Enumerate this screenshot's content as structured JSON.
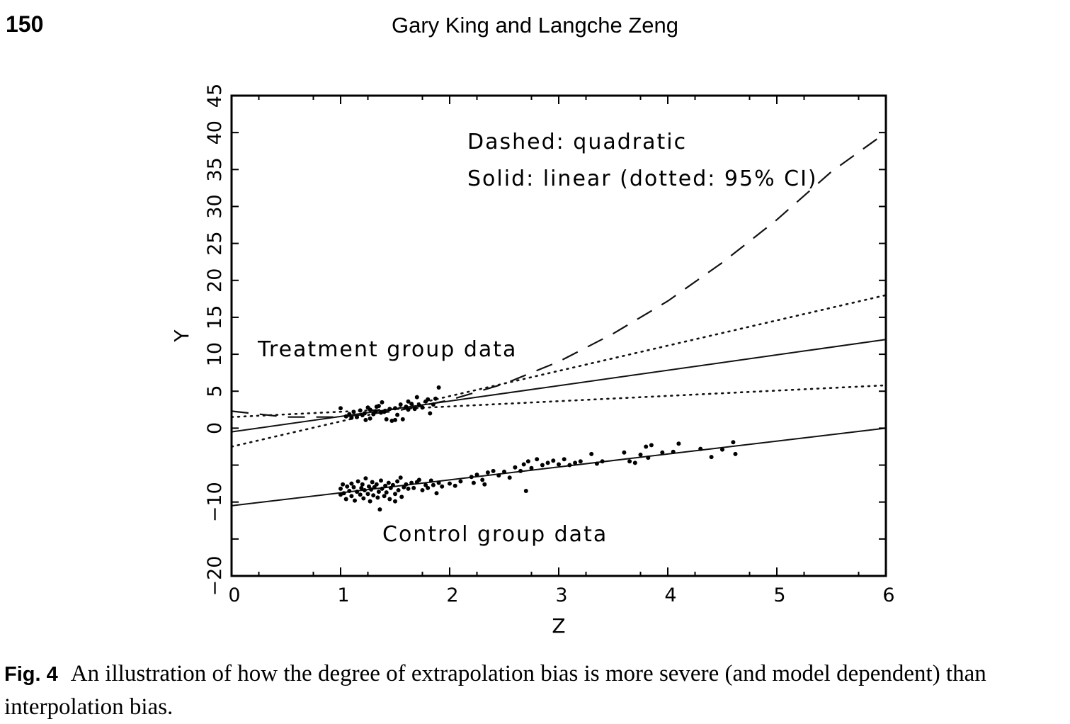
{
  "header": {
    "page_number": "150",
    "authors": "Gary King and Langche Zeng"
  },
  "caption": {
    "label": "Fig. 4",
    "text": "An illustration of how the degree of extrapolation bias is more severe (and model dependent) than interpolation bias."
  },
  "chart_data": {
    "type": "scatter",
    "xlabel": "Z",
    "ylabel": "Y",
    "xlim": [
      0,
      6
    ],
    "ylim": [
      -20,
      45
    ],
    "xticks": [
      "0",
      "1",
      "2",
      "3",
      "4",
      "5",
      "6"
    ],
    "yticks": [
      "−20",
      "−10",
      "0",
      "5",
      "10",
      "15",
      "20",
      "25",
      "30",
      "35",
      "40",
      "45"
    ],
    "grid": false,
    "annotations": {
      "legend_line1": "Dashed: quadratic",
      "legend_line2": "Solid: linear (dotted: 95% CI)",
      "treatment_label": "Treatment group data",
      "control_label": "Control group data"
    },
    "lines": [
      {
        "style": "solid",
        "x": [
          0,
          6
        ],
        "y": [
          -0.5,
          12
        ]
      },
      {
        "style": "dotted",
        "x": [
          0,
          6
        ],
        "y": [
          -2.5,
          18
        ]
      },
      {
        "style": "dotted",
        "x": [
          0,
          6
        ],
        "y": [
          1.5,
          5.8
        ]
      },
      {
        "style": "dashed",
        "x": [
          0,
          0.5,
          1,
          1.5,
          2,
          2.5,
          3,
          3.5,
          4,
          4.5,
          5,
          5.5,
          6
        ],
        "y": [
          2.3,
          1.5,
          1.5,
          2.3,
          3.8,
          6.0,
          9.0,
          12.8,
          17.2,
          22.4,
          28.2,
          34.7,
          40
        ]
      },
      {
        "style": "solid",
        "x": [
          0,
          6
        ],
        "y": [
          -10.5,
          0
        ]
      }
    ],
    "series": [
      {
        "group": "treatment",
        "points": [
          [
            1.0,
            2.7
          ],
          [
            1.05,
            1.6
          ],
          [
            1.08,
            1.9
          ],
          [
            1.12,
            2.2
          ],
          [
            1.15,
            1.5
          ],
          [
            1.18,
            2.4
          ],
          [
            1.2,
            1.8
          ],
          [
            1.22,
            2.0
          ],
          [
            1.25,
            2.8
          ],
          [
            1.27,
            2.5
          ],
          [
            1.3,
            1.9
          ],
          [
            1.32,
            2.3
          ],
          [
            1.35,
            3.0
          ],
          [
            1.37,
            2.1
          ],
          [
            1.38,
            3.5
          ],
          [
            1.4,
            2.2
          ],
          [
            1.42,
            1.2
          ],
          [
            1.45,
            2.6
          ],
          [
            1.47,
            1.0
          ],
          [
            1.5,
            2.7
          ],
          [
            1.52,
            1.8
          ],
          [
            1.55,
            3.2
          ],
          [
            1.57,
            1.2
          ],
          [
            1.6,
            2.9
          ],
          [
            1.62,
            2.5
          ],
          [
            1.65,
            3.3
          ],
          [
            1.68,
            2.6
          ],
          [
            1.7,
            4.2
          ],
          [
            1.72,
            3.1
          ],
          [
            1.75,
            2.8
          ],
          [
            1.78,
            3.6
          ],
          [
            1.8,
            3.9
          ],
          [
            1.82,
            2.0
          ],
          [
            1.85,
            3.2
          ],
          [
            1.87,
            4.0
          ],
          [
            1.9,
            5.5
          ],
          [
            1.27,
            1.3
          ],
          [
            1.33,
            2.9
          ],
          [
            1.5,
            1.1
          ],
          [
            1.62,
            3.6
          ],
          [
            1.23,
            1.1
          ],
          [
            1.1,
            1.4
          ]
        ]
      },
      {
        "group": "control",
        "points": [
          [
            1.0,
            -8.2
          ],
          [
            1.0,
            -9.0
          ],
          [
            1.02,
            -7.6
          ],
          [
            1.03,
            -8.8
          ],
          [
            1.05,
            -9.6
          ],
          [
            1.06,
            -7.9
          ],
          [
            1.08,
            -8.5
          ],
          [
            1.1,
            -9.2
          ],
          [
            1.1,
            -7.5
          ],
          [
            1.12,
            -8.0
          ],
          [
            1.13,
            -9.8
          ],
          [
            1.15,
            -8.6
          ],
          [
            1.16,
            -7.2
          ],
          [
            1.18,
            -9.0
          ],
          [
            1.19,
            -8.1
          ],
          [
            1.2,
            -7.6
          ],
          [
            1.21,
            -9.5
          ],
          [
            1.22,
            -8.4
          ],
          [
            1.23,
            -6.8
          ],
          [
            1.25,
            -8.9
          ],
          [
            1.26,
            -7.9
          ],
          [
            1.27,
            -9.9
          ],
          [
            1.28,
            -8.3
          ],
          [
            1.29,
            -7.3
          ],
          [
            1.3,
            -9.1
          ],
          [
            1.31,
            -8.0
          ],
          [
            1.33,
            -7.6
          ],
          [
            1.34,
            -9.4
          ],
          [
            1.35,
            -8.6
          ],
          [
            1.36,
            -11.0
          ],
          [
            1.37,
            -7.1
          ],
          [
            1.38,
            -8.2
          ],
          [
            1.4,
            -9.2
          ],
          [
            1.41,
            -7.8
          ],
          [
            1.42,
            -8.7
          ],
          [
            1.44,
            -7.4
          ],
          [
            1.45,
            -9.6
          ],
          [
            1.46,
            -8.1
          ],
          [
            1.48,
            -7.7
          ],
          [
            1.5,
            -8.9
          ],
          [
            1.5,
            -9.9
          ],
          [
            1.52,
            -7.2
          ],
          [
            1.53,
            -8.4
          ],
          [
            1.55,
            -6.7
          ],
          [
            1.56,
            -9.3
          ],
          [
            1.58,
            -8.0
          ],
          [
            1.6,
            -7.6
          ],
          [
            1.62,
            -8.2
          ],
          [
            1.65,
            -7.4
          ],
          [
            1.67,
            -8.1
          ],
          [
            1.7,
            -7.3
          ],
          [
            1.72,
            -7.0
          ],
          [
            1.75,
            -8.4
          ],
          [
            1.78,
            -7.7
          ],
          [
            1.8,
            -8.1
          ],
          [
            1.83,
            -7.1
          ],
          [
            1.85,
            -7.7
          ],
          [
            1.88,
            -8.8
          ],
          [
            1.9,
            -7.4
          ],
          [
            1.93,
            -7.9
          ],
          [
            2.0,
            -7.5
          ],
          [
            2.05,
            -7.8
          ],
          [
            2.1,
            -7.2
          ],
          [
            2.2,
            -6.6
          ],
          [
            2.22,
            -7.4
          ],
          [
            2.25,
            -6.3
          ],
          [
            2.3,
            -7.0
          ],
          [
            2.32,
            -7.6
          ],
          [
            2.35,
            -6.0
          ],
          [
            2.4,
            -5.8
          ],
          [
            2.45,
            -6.4
          ],
          [
            2.5,
            -5.9
          ],
          [
            2.55,
            -6.7
          ],
          [
            2.6,
            -5.3
          ],
          [
            2.65,
            -5.8
          ],
          [
            2.68,
            -4.9
          ],
          [
            2.7,
            -8.5
          ],
          [
            2.72,
            -4.5
          ],
          [
            2.75,
            -5.4
          ],
          [
            2.8,
            -4.2
          ],
          [
            2.85,
            -5.0
          ],
          [
            2.9,
            -4.7
          ],
          [
            3.0,
            -4.9
          ],
          [
            3.05,
            -4.2
          ],
          [
            3.1,
            -5.0
          ],
          [
            3.2,
            -4.5
          ],
          [
            3.3,
            -3.5
          ],
          [
            3.35,
            -4.8
          ],
          [
            3.4,
            -4.5
          ],
          [
            3.6,
            -3.3
          ],
          [
            3.65,
            -4.5
          ],
          [
            3.7,
            -4.7
          ],
          [
            3.75,
            -3.6
          ],
          [
            3.8,
            -2.5
          ],
          [
            3.82,
            -4.0
          ],
          [
            3.85,
            -2.3
          ],
          [
            3.95,
            -3.3
          ],
          [
            4.05,
            -3.2
          ],
          [
            4.1,
            -2.1
          ],
          [
            4.3,
            -2.8
          ],
          [
            4.4,
            -3.9
          ],
          [
            4.5,
            -2.9
          ],
          [
            4.6,
            -1.9
          ],
          [
            4.62,
            -3.5
          ],
          [
            3.15,
            -4.7
          ],
          [
            2.95,
            -4.4
          ]
        ]
      }
    ]
  }
}
